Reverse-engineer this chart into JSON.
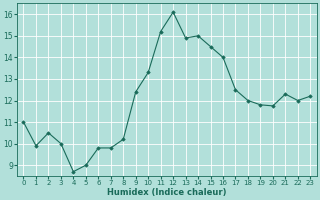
{
  "x": [
    0,
    1,
    2,
    3,
    4,
    5,
    6,
    7,
    8,
    9,
    10,
    11,
    12,
    13,
    14,
    15,
    16,
    17,
    18,
    19,
    20,
    21,
    22,
    23
  ],
  "y": [
    11.0,
    9.9,
    10.5,
    10.0,
    8.7,
    9.0,
    9.8,
    9.8,
    10.2,
    12.4,
    13.3,
    15.2,
    16.1,
    14.9,
    15.0,
    14.5,
    14.0,
    12.5,
    12.0,
    11.8,
    11.75,
    12.3,
    12.0,
    12.2
  ],
  "line_color": "#1a6b5a",
  "marker": "D",
  "marker_size": 1.8,
  "bg_color": "#b2e0da",
  "grid_color": "#ffffff",
  "xlabel": "Humidex (Indice chaleur)",
  "xlabel_color": "#1a6b5a",
  "tick_color": "#1a6b5a",
  "xlim": [
    -0.5,
    23.5
  ],
  "ylim": [
    8.5,
    16.5
  ],
  "yticks": [
    9,
    10,
    11,
    12,
    13,
    14,
    15,
    16
  ],
  "xticks": [
    0,
    1,
    2,
    3,
    4,
    5,
    6,
    7,
    8,
    9,
    10,
    11,
    12,
    13,
    14,
    15,
    16,
    17,
    18,
    19,
    20,
    21,
    22,
    23
  ],
  "xtick_fontsize": 5.0,
  "ytick_fontsize": 5.5,
  "xlabel_fontsize": 6.0,
  "linewidth": 0.8
}
